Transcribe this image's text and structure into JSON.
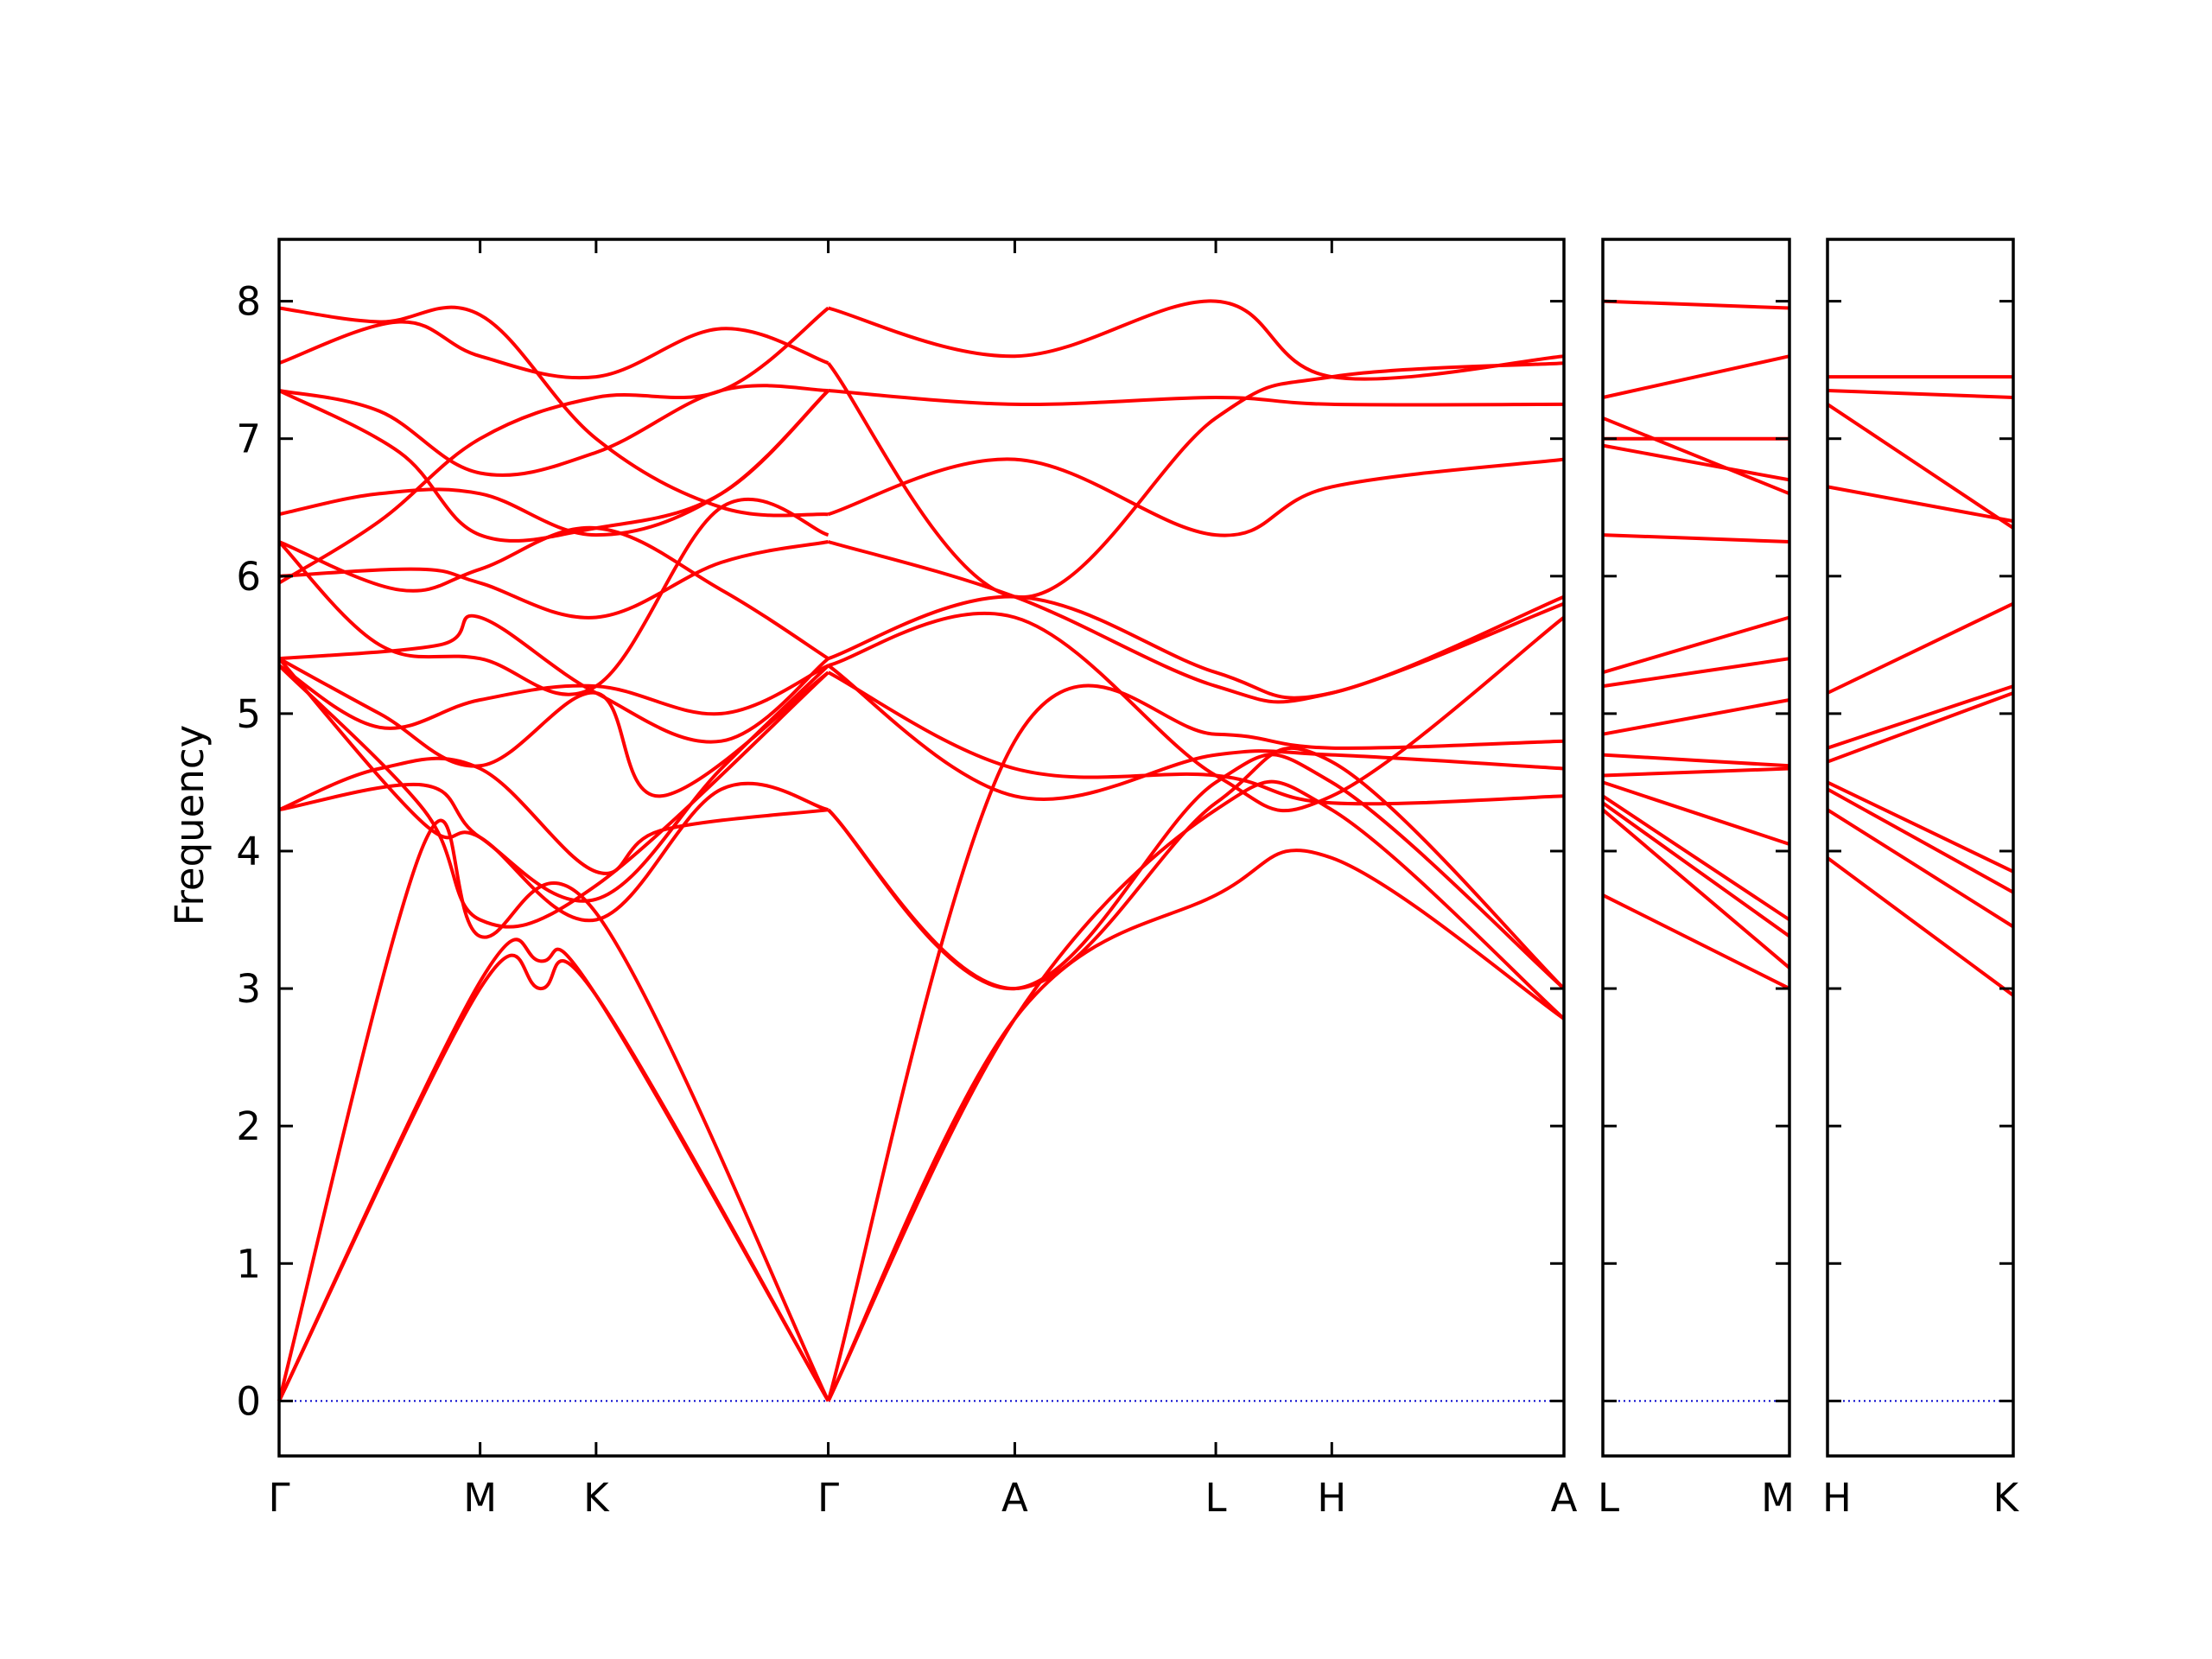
{
  "chart_data": {
    "type": "line",
    "title": "",
    "xlabel": "",
    "ylabel": "Frequency",
    "ylim": [
      -0.4,
      8.45
    ],
    "yticks": [
      0,
      1,
      2,
      3,
      4,
      5,
      6,
      7,
      8
    ],
    "grid": false,
    "line_color": "#ff0000",
    "zero_line_color": "#0000cc",
    "panels": [
      {
        "id": "p1",
        "points": [
          "Γ",
          "M",
          "K",
          "Γ",
          "A",
          "L",
          "H",
          "A"
        ],
        "x": [
          0,
          1.0,
          1.577,
          2.732,
          3.66,
          4.66,
          5.237,
          6.392
        ],
        "bands": [
          [
            [
              0,
              0
            ],
            [
              1.0,
              3.0
            ],
            [
              1.3,
              3.0
            ],
            [
              1.577,
              2.95
            ],
            [
              2.732,
              0
            ]
          ],
          [
            [
              0,
              0
            ],
            [
              1.0,
              3.05
            ],
            [
              1.3,
              3.2
            ],
            [
              1.577,
              2.95
            ],
            [
              2.732,
              0
            ]
          ],
          [
            [
              0,
              0
            ],
            [
              0.72,
              4.05
            ],
            [
              1.0,
              3.38
            ],
            [
              1.577,
              3.55
            ],
            [
              2.732,
              0
            ]
          ],
          [
            [
              0,
              4.3
            ],
            [
              0.72,
              4.48
            ],
            [
              1.0,
              4.1
            ],
            [
              1.577,
              3.65
            ],
            [
              2.2,
              4.6
            ],
            [
              2.732,
              5.35
            ]
          ],
          [
            [
              0,
              4.3
            ],
            [
              0.5,
              4.6
            ],
            [
              1.0,
              4.6
            ],
            [
              1.577,
              3.85
            ],
            [
              1.9,
              4.15
            ],
            [
              2.732,
              4.3
            ]
          ],
          [
            [
              0,
              5.35
            ],
            [
              0.72,
              4.3
            ],
            [
              1.0,
              3.5
            ],
            [
              1.577,
              3.75
            ],
            [
              2.732,
              5.3
            ]
          ],
          [
            [
              0,
              5.4
            ],
            [
              0.72,
              4.2
            ],
            [
              1.0,
              4.1
            ],
            [
              1.577,
              3.5
            ],
            [
              2.2,
              4.45
            ],
            [
              2.732,
              4.3
            ]
          ],
          [
            [
              0,
              5.4
            ],
            [
              0.5,
              5.0
            ],
            [
              1.0,
              4.62
            ],
            [
              1.577,
              5.15
            ],
            [
              1.9,
              4.4
            ],
            [
              2.732,
              5.3
            ]
          ],
          [
            [
              0,
              5.4
            ],
            [
              0.8,
              5.5
            ],
            [
              1.0,
              5.7
            ],
            [
              1.577,
              5.15
            ],
            [
              2.2,
              4.8
            ],
            [
              2.732,
              5.4
            ]
          ],
          [
            [
              0,
              5.35
            ],
            [
              0.5,
              4.9
            ],
            [
              1.0,
              5.1
            ],
            [
              1.577,
              5.2
            ],
            [
              2.2,
              5.0
            ],
            [
              2.732,
              5.35
            ]
          ],
          [
            [
              0,
              6.0
            ],
            [
              0.7,
              6.05
            ],
            [
              1.0,
              5.95
            ],
            [
              1.577,
              5.7
            ],
            [
              2.2,
              6.1
            ],
            [
              2.732,
              6.25
            ]
          ],
          [
            [
              0,
              6.25
            ],
            [
              0.5,
              5.5
            ],
            [
              1.0,
              5.4
            ],
            [
              1.577,
              5.2
            ],
            [
              2.2,
              6.5
            ],
            [
              2.732,
              6.3
            ]
          ],
          [
            [
              0,
              6.25
            ],
            [
              0.6,
              5.9
            ],
            [
              1.0,
              6.05
            ],
            [
              1.577,
              6.35
            ],
            [
              2.2,
              5.9
            ],
            [
              2.732,
              5.4
            ]
          ],
          [
            [
              0,
              6.45
            ],
            [
              0.5,
              6.6
            ],
            [
              1.0,
              6.6
            ],
            [
              1.577,
              6.3
            ],
            [
              2.2,
              6.6
            ],
            [
              2.732,
              7.35
            ]
          ],
          [
            [
              0,
              7.35
            ],
            [
              0.5,
              7.2
            ],
            [
              1.0,
              6.75
            ],
            [
              1.577,
              6.9
            ],
            [
              2.2,
              7.35
            ],
            [
              2.732,
              7.35
            ]
          ],
          [
            [
              0,
              7.35
            ],
            [
              0.6,
              6.9
            ],
            [
              1.0,
              6.3
            ],
            [
              1.577,
              6.35
            ],
            [
              2.2,
              6.6
            ],
            [
              2.732,
              7.35
            ]
          ],
          [
            [
              0,
              7.55
            ],
            [
              0.6,
              7.85
            ],
            [
              1.0,
              7.6
            ],
            [
              1.577,
              7.45
            ],
            [
              2.2,
              7.8
            ],
            [
              2.732,
              7.55
            ]
          ],
          [
            [
              0,
              7.95
            ],
            [
              0.5,
              7.85
            ],
            [
              1.0,
              7.9
            ],
            [
              1.577,
              7.0
            ],
            [
              2.2,
              6.5
            ],
            [
              2.732,
              6.45
            ]
          ],
          [
            [
              0,
              5.95
            ],
            [
              0.5,
              6.4
            ],
            [
              1.0,
              7.0
            ],
            [
              1.577,
              7.3
            ],
            [
              2.2,
              7.35
            ],
            [
              2.732,
              7.95
            ]
          ],
          [
            [
              2.732,
              0
            ],
            [
              3.66,
              2.78
            ],
            [
              4.66,
              3.68
            ],
            [
              5.237,
              3.95
            ],
            [
              6.392,
              2.78
            ]
          ],
          [
            [
              2.732,
              0
            ],
            [
              3.66,
              2.78
            ],
            [
              4.66,
              4.3
            ],
            [
              5.237,
              4.3
            ],
            [
              6.392,
              2.78
            ]
          ],
          [
            [
              2.732,
              0
            ],
            [
              3.66,
              4.8
            ],
            [
              4.66,
              4.85
            ],
            [
              5.237,
              4.75
            ],
            [
              6.392,
              4.8
            ]
          ],
          [
            [
              2.732,
              4.3
            ],
            [
              3.66,
              3.0
            ],
            [
              4.66,
              4.5
            ],
            [
              5.237,
              4.5
            ],
            [
              6.392,
              3.0
            ]
          ],
          [
            [
              2.732,
              4.3
            ],
            [
              3.66,
              3.0
            ],
            [
              4.66,
              4.35
            ],
            [
              5.237,
              4.65
            ],
            [
              6.392,
              3.0
            ]
          ],
          [
            [
              2.732,
              5.3
            ],
            [
              3.66,
              4.6
            ],
            [
              4.66,
              4.55
            ],
            [
              5.237,
              4.35
            ],
            [
              6.392,
              4.4
            ]
          ],
          [
            [
              2.732,
              5.35
            ],
            [
              3.66,
              4.4
            ],
            [
              4.66,
              4.7
            ],
            [
              5.237,
              4.7
            ],
            [
              6.392,
              4.6
            ]
          ],
          [
            [
              2.732,
              5.35
            ],
            [
              3.66,
              5.7
            ],
            [
              4.66,
              4.55
            ],
            [
              5.237,
              4.4
            ],
            [
              6.392,
              5.7
            ]
          ],
          [
            [
              2.732,
              5.4
            ],
            [
              3.66,
              5.85
            ],
            [
              4.66,
              5.3
            ],
            [
              5.237,
              5.15
            ],
            [
              6.392,
              5.85
            ]
          ],
          [
            [
              2.732,
              6.25
            ],
            [
              3.66,
              5.85
            ],
            [
              4.66,
              5.2
            ],
            [
              5.237,
              5.15
            ],
            [
              6.392,
              5.8
            ]
          ],
          [
            [
              2.732,
              6.45
            ],
            [
              3.66,
              6.85
            ],
            [
              4.66,
              6.3
            ],
            [
              5.237,
              6.65
            ],
            [
              6.392,
              6.85
            ]
          ],
          [
            [
              2.732,
              7.35
            ],
            [
              3.66,
              7.25
            ],
            [
              4.66,
              7.3
            ],
            [
              5.237,
              7.25
            ],
            [
              6.392,
              7.25
            ]
          ],
          [
            [
              2.732,
              7.55
            ],
            [
              3.66,
              5.85
            ],
            [
              4.66,
              7.15
            ],
            [
              5.237,
              7.45
            ],
            [
              6.392,
              7.55
            ]
          ],
          [
            [
              2.732,
              7.95
            ],
            [
              3.66,
              7.6
            ],
            [
              4.66,
              8.0
            ],
            [
              5.237,
              7.45
            ],
            [
              6.392,
              7.6
            ]
          ]
        ]
      },
      {
        "id": "p2",
        "points": [
          "L",
          "M"
        ],
        "x": [
          0,
          1
        ],
        "bands": [
          [
            [
              0,
              3.68
            ],
            [
              1,
              3.0
            ]
          ],
          [
            [
              0,
              4.3
            ],
            [
              1,
              3.15
            ]
          ],
          [
            [
              0,
              4.35
            ],
            [
              1,
              3.38
            ]
          ],
          [
            [
              0,
              4.4
            ],
            [
              1,
              3.5
            ]
          ],
          [
            [
              0,
              4.5
            ],
            [
              1,
              4.05
            ]
          ],
          [
            [
              0,
              4.55
            ],
            [
              1,
              4.6
            ]
          ],
          [
            [
              0,
              4.7
            ],
            [
              1,
              4.62
            ]
          ],
          [
            [
              0,
              4.85
            ],
            [
              1,
              5.1
            ]
          ],
          [
            [
              0,
              5.2
            ],
            [
              1,
              5.4
            ]
          ],
          [
            [
              0,
              5.3
            ],
            [
              1,
              5.7
            ]
          ],
          [
            [
              0,
              6.3
            ],
            [
              1,
              6.25
            ]
          ],
          [
            [
              0,
              6.95
            ],
            [
              1,
              6.7
            ]
          ],
          [
            [
              0,
              7.0
            ],
            [
              1,
              7.0
            ]
          ],
          [
            [
              0,
              7.15
            ],
            [
              1,
              6.6
            ]
          ],
          [
            [
              0,
              7.3
            ],
            [
              1,
              7.6
            ]
          ],
          [
            [
              0,
              8.0
            ],
            [
              1,
              7.95
            ]
          ]
        ]
      },
      {
        "id": "p3",
        "points": [
          "H",
          "K"
        ],
        "x": [
          0,
          1
        ],
        "bands": [
          [
            [
              0,
              3.95
            ],
            [
              1,
              2.95
            ]
          ],
          [
            [
              0,
              4.3
            ],
            [
              1,
              3.45
            ]
          ],
          [
            [
              0,
              4.45
            ],
            [
              1,
              3.7
            ]
          ],
          [
            [
              0,
              4.5
            ],
            [
              1,
              3.85
            ]
          ],
          [
            [
              0,
              4.65
            ],
            [
              1,
              5.15
            ]
          ],
          [
            [
              0,
              4.75
            ],
            [
              1,
              5.2
            ]
          ],
          [
            [
              0,
              5.15
            ],
            [
              1,
              5.8
            ]
          ],
          [
            [
              0,
              6.65
            ],
            [
              1,
              6.4
            ]
          ],
          [
            [
              0,
              7.25
            ],
            [
              1,
              6.35
            ]
          ],
          [
            [
              0,
              7.35
            ],
            [
              1,
              7.3
            ]
          ],
          [
            [
              0,
              7.45
            ],
            [
              1,
              7.45
            ]
          ]
        ]
      }
    ]
  }
}
